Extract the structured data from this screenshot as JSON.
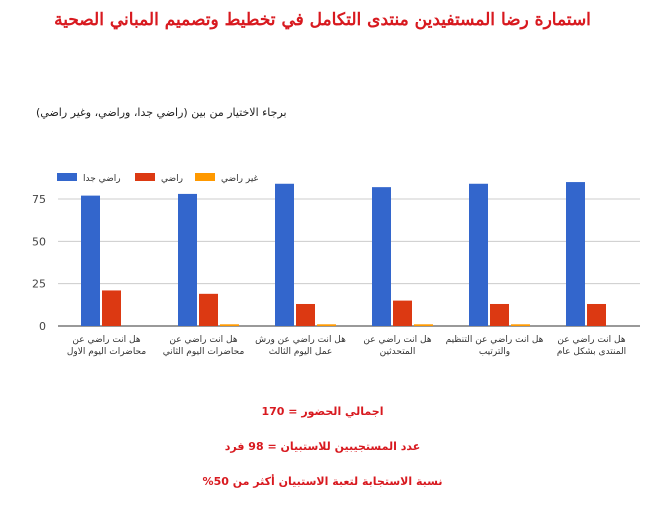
{
  "header": {
    "title": "استمارة رضا المستفيدين منتدى التكامل في تخطيط وتصميم المباني الصحية",
    "subtitle": "برجاء الاختيار من بين (راضي جدا، وراضي، وغير راضي)"
  },
  "chart_data": {
    "type": "bar",
    "title": "",
    "xlabel": "",
    "ylabel": "",
    "ylim": [
      0,
      90
    ],
    "yticks": [
      0,
      25,
      50,
      75
    ],
    "grid": true,
    "legend_position": "top-left",
    "categories": [
      [
        "هل انت راضي عن",
        "محاضرات اليوم الاول"
      ],
      [
        "هل انت راضي عن",
        "محاضرات اليوم الثاني"
      ],
      [
        "هل انت راضي عن ورش",
        "عمل اليوم الثالث"
      ],
      [
        "هل انت راضي عن",
        "المتحدثين"
      ],
      [
        "هل انت راضي عن التنظيم",
        "والترتيب"
      ],
      [
        "هل انت راضي عن",
        "المنتدى بشكل عام"
      ]
    ],
    "series": [
      {
        "name": "راضي جدا",
        "color": "#3366cc",
        "values": [
          77,
          78,
          84,
          82,
          84,
          85
        ]
      },
      {
        "name": "راضي",
        "color": "#dc3912",
        "values": [
          21,
          19,
          13,
          15,
          13,
          13
        ]
      },
      {
        "name": "غير راضي",
        "color": "#ff9900",
        "values": [
          0,
          1,
          1,
          1,
          1,
          0
        ]
      }
    ]
  },
  "stats": {
    "attendance": "اجمالي الحضور = 170",
    "respondents": "عدد المستجيبين للاستبيان = 98 فرد",
    "response_rate": "نسبة الاستجابة لتعبة الاستبيان أكثر من 50%"
  }
}
